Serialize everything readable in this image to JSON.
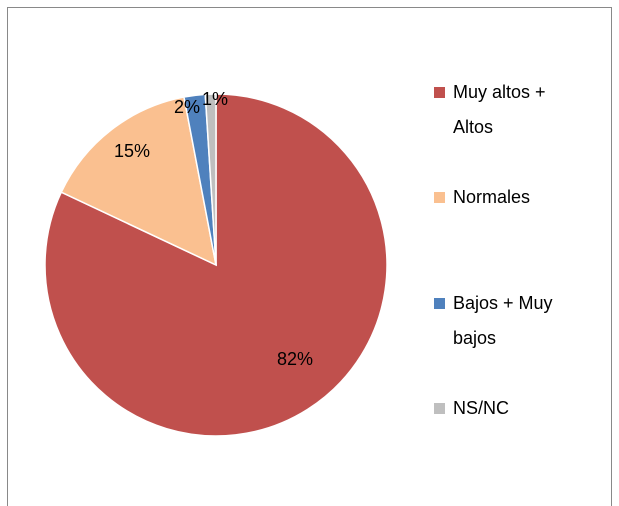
{
  "chart_data": {
    "type": "pie",
    "categories": [
      "Muy altos + Altos",
      "Normales",
      "Bajos + Muy bajos",
      "NS/NC"
    ],
    "values": [
      82,
      15,
      2,
      1
    ],
    "value_labels": [
      "82%",
      "15%",
      "2%",
      "1%"
    ],
    "colors": [
      "#c0504d",
      "#fac090",
      "#4f81bd",
      "#bfbfbf"
    ],
    "legend": "right"
  }
}
